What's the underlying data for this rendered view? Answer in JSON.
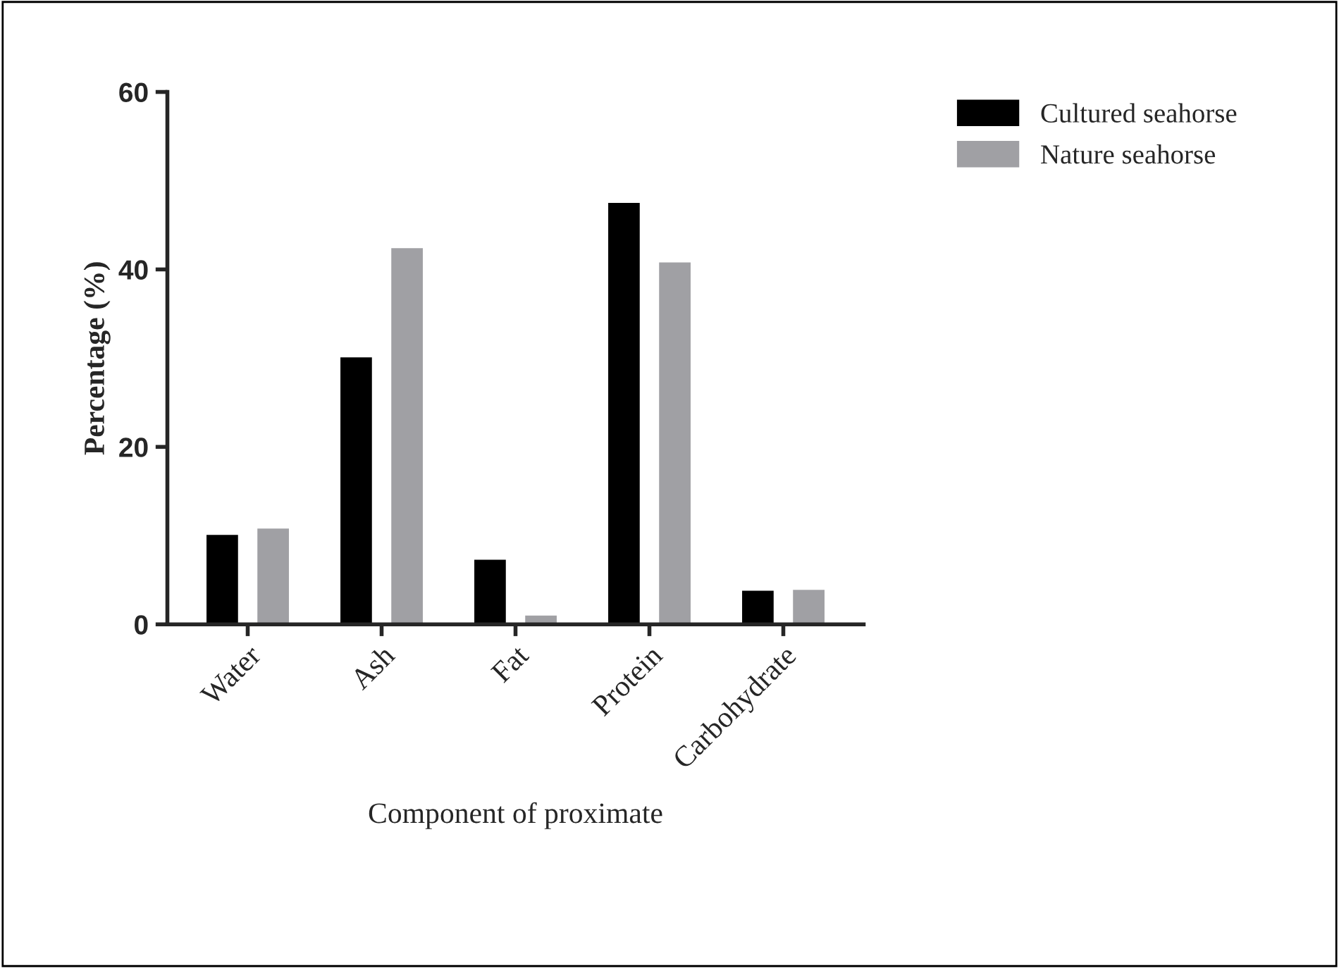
{
  "chart_data": {
    "type": "bar",
    "xlabel": "Component of proximate",
    "ylabel": "Percentage (%)",
    "categories": [
      "Water",
      "Ash",
      "Fat",
      "Protein",
      "Carbohydrate"
    ],
    "series": [
      {
        "name": "Cultured seahorse",
        "color": "#000000",
        "values": [
          10.2,
          30.2,
          7.4,
          47.6,
          3.9
        ]
      },
      {
        "name": "Nature seahorse",
        "color": "#a0a0a4",
        "values": [
          10.9,
          42.5,
          1.1,
          40.9,
          4.0
        ]
      }
    ],
    "ylim": [
      0,
      60
    ],
    "yticks": [
      0,
      20,
      40,
      60
    ],
    "grid": false,
    "legend": "top right"
  }
}
